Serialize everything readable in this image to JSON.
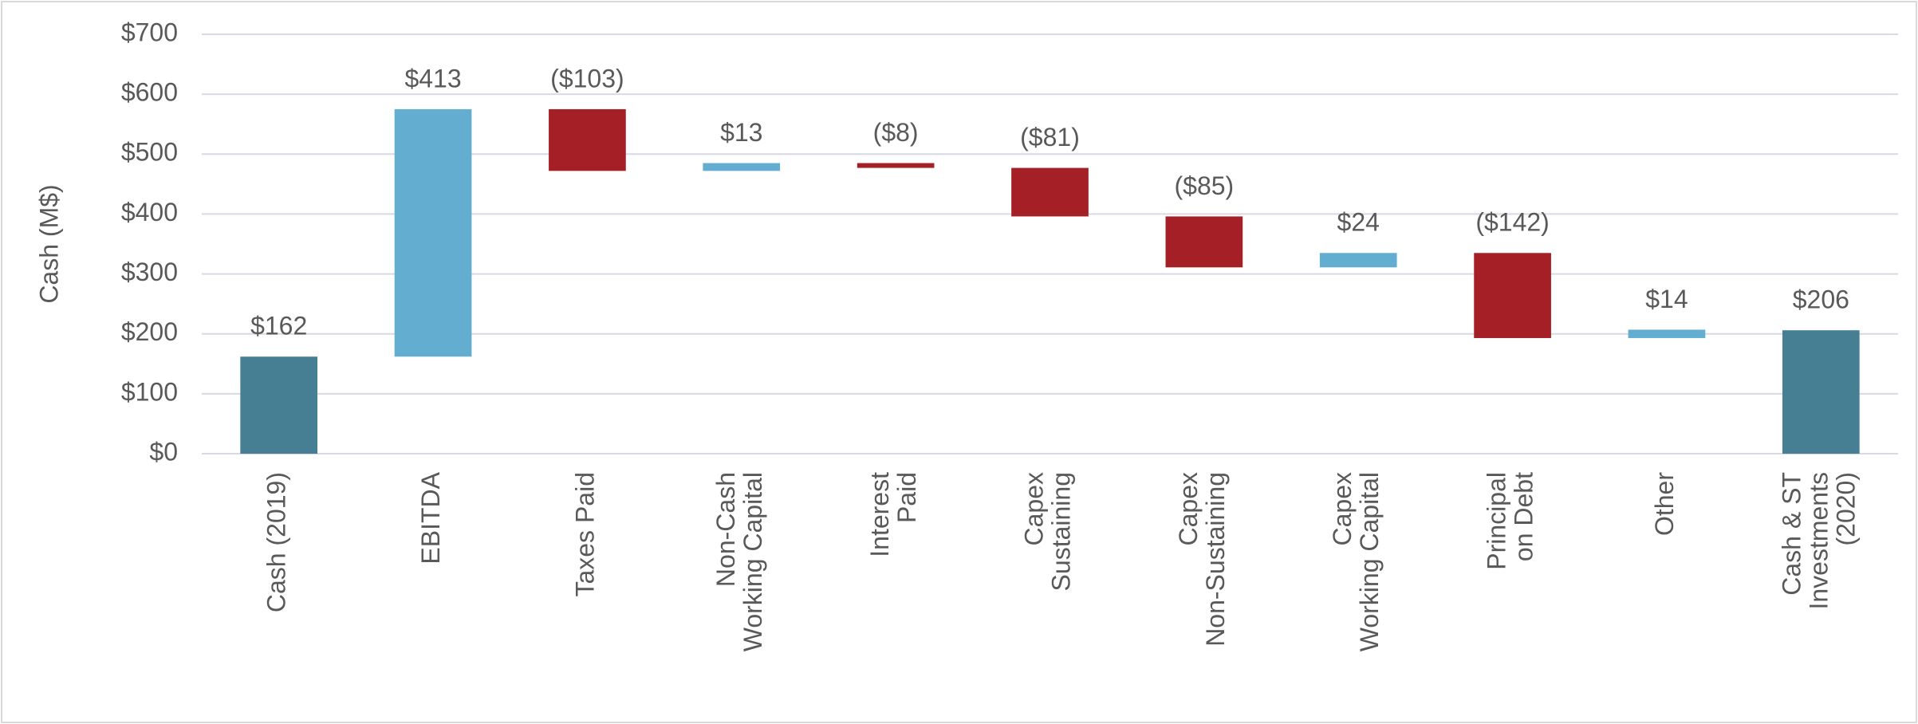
{
  "chart_data": {
    "type": "waterfall",
    "y_axis_label": "Cash (M$)",
    "categories": [
      "Cash (2019)",
      "EBITDA",
      "Taxes Paid",
      "Non-Cash\nWorking Capital",
      "Interest\nPaid",
      "Capex\nSustaining",
      "Capex\nNon-Sustaining",
      "Capex\nWorking Capital",
      "Principal\non Debt",
      "Other",
      "Cash & ST\nInvestments\n(2020)"
    ],
    "values": [
      162,
      413,
      -103,
      13,
      -8,
      -81,
      -85,
      24,
      -142,
      14,
      206
    ],
    "value_labels": [
      "$162",
      "$413",
      "($103)",
      "$13",
      "($8)",
      "($81)",
      "($85)",
      "$24",
      "($142)",
      "$14",
      "$206"
    ],
    "measures": [
      "absolute",
      "relative",
      "relative",
      "relative",
      "relative",
      "relative",
      "relative",
      "relative",
      "relative",
      "relative",
      "absolute"
    ],
    "colors": {
      "absolute": "#467f94",
      "increase": "#63aed0",
      "decrease": "#a51f27"
    },
    "ylim": [
      0,
      700
    ],
    "yticks": [
      {
        "value": 0,
        "label": "$0"
      },
      {
        "value": 100,
        "label": "$100"
      },
      {
        "value": 200,
        "label": "$200"
      },
      {
        "value": 300,
        "label": "$300"
      },
      {
        "value": 400,
        "label": "$400"
      },
      {
        "value": 500,
        "label": "$500"
      },
      {
        "value": 600,
        "label": "$600"
      },
      {
        "value": 700,
        "label": "$700"
      }
    ],
    "grid": true
  }
}
